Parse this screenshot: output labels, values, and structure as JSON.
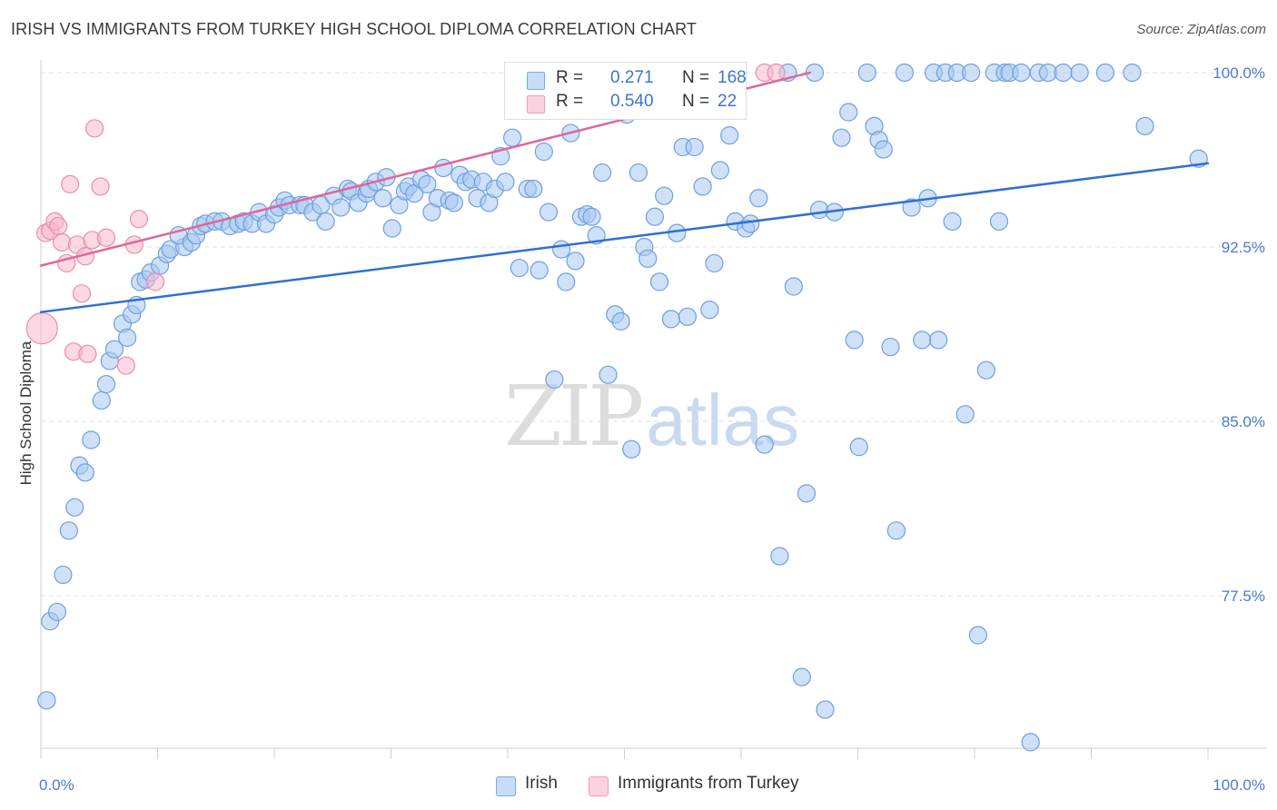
{
  "header": {
    "title": "IRISH VS IMMIGRANTS FROM TURKEY HIGH SCHOOL DIPLOMA CORRELATION CHART",
    "source": "Source: ZipAtlas.com"
  },
  "legend": {
    "series": [
      {
        "r_label": "R =",
        "r_value": "0.271",
        "n_label": "N =",
        "n_value": "168",
        "color": "#a8c8f0"
      },
      {
        "r_label": "R =",
        "r_value": "0.540",
        "n_label": "N =",
        "n_value": "22",
        "color": "#f7b8cc"
      }
    ]
  },
  "watermark": {
    "zip": "ZIP",
    "atlas": "atlas"
  },
  "chart_data": {
    "type": "scatter",
    "title": "IRISH VS IMMIGRANTS FROM TURKEY HIGH SCHOOL DIPLOMA CORRELATION CHART",
    "ylabel": "High School Diploma",
    "xlabel": "",
    "xlim": [
      0,
      100
    ],
    "ylim": [
      71.2,
      100.6
    ],
    "x_tick_labels": [
      "0.0%",
      "100.0%"
    ],
    "y_ticks": [
      77.5,
      85.0,
      92.5,
      100.0
    ],
    "y_tick_labels": [
      "77.5%",
      "85.0%",
      "92.5%",
      "100.0%"
    ],
    "grid": true,
    "legend_position": "bottom",
    "series": [
      {
        "name": "Irish",
        "color": "#a8c8f0",
        "edge_color": "#6f9ee0",
        "trend": {
          "x": [
            0,
            100
          ],
          "y": [
            89.7,
            96.1
          ],
          "color": "#2f6fd2"
        },
        "points": [
          [
            0.5,
            73.0
          ],
          [
            0.8,
            76.4
          ],
          [
            1.4,
            76.8
          ],
          [
            1.9,
            78.4
          ],
          [
            2.4,
            80.3
          ],
          [
            2.9,
            81.3
          ],
          [
            3.3,
            83.1
          ],
          [
            3.8,
            82.8
          ],
          [
            4.3,
            84.2
          ],
          [
            5.2,
            85.9
          ],
          [
            5.6,
            86.6
          ],
          [
            5.9,
            87.6
          ],
          [
            6.3,
            88.1
          ],
          [
            7.0,
            89.2
          ],
          [
            7.4,
            88.6
          ],
          [
            7.8,
            89.6
          ],
          [
            8.2,
            90.0
          ],
          [
            8.5,
            91.0
          ],
          [
            9.0,
            91.1
          ],
          [
            9.4,
            91.4
          ],
          [
            10.2,
            91.7
          ],
          [
            10.8,
            92.2
          ],
          [
            11.1,
            92.4
          ],
          [
            12.3,
            92.5
          ],
          [
            11.8,
            93.0
          ],
          [
            12.9,
            92.7
          ],
          [
            13.3,
            93.0
          ],
          [
            13.7,
            93.4
          ],
          [
            14.1,
            93.5
          ],
          [
            14.9,
            93.6
          ],
          [
            15.5,
            93.6
          ],
          [
            16.2,
            93.4
          ],
          [
            16.9,
            93.5
          ],
          [
            17.4,
            93.6
          ],
          [
            18.1,
            93.5
          ],
          [
            18.7,
            94.0
          ],
          [
            19.3,
            93.5
          ],
          [
            20.0,
            93.9
          ],
          [
            20.4,
            94.2
          ],
          [
            20.9,
            94.5
          ],
          [
            21.3,
            94.3
          ],
          [
            22.2,
            94.3
          ],
          [
            22.6,
            94.3
          ],
          [
            23.3,
            94.0
          ],
          [
            24.0,
            94.3
          ],
          [
            24.4,
            93.6
          ],
          [
            25.1,
            94.7
          ],
          [
            25.7,
            94.2
          ],
          [
            26.3,
            95.0
          ],
          [
            26.6,
            94.9
          ],
          [
            27.2,
            94.4
          ],
          [
            27.9,
            94.8
          ],
          [
            28.1,
            95.0
          ],
          [
            28.7,
            95.3
          ],
          [
            29.3,
            94.6
          ],
          [
            29.6,
            95.5
          ],
          [
            30.1,
            93.3
          ],
          [
            30.7,
            94.3
          ],
          [
            31.2,
            94.9
          ],
          [
            31.5,
            95.1
          ],
          [
            32.0,
            94.8
          ],
          [
            32.6,
            95.4
          ],
          [
            33.1,
            95.2
          ],
          [
            33.5,
            94.0
          ],
          [
            34.0,
            94.6
          ],
          [
            34.5,
            95.9
          ],
          [
            35.0,
            94.5
          ],
          [
            35.4,
            94.4
          ],
          [
            35.9,
            95.6
          ],
          [
            36.4,
            95.3
          ],
          [
            36.9,
            95.4
          ],
          [
            37.4,
            94.6
          ],
          [
            37.9,
            95.3
          ],
          [
            38.4,
            94.4
          ],
          [
            38.9,
            95.0
          ],
          [
            39.4,
            96.4
          ],
          [
            39.8,
            95.3
          ],
          [
            40.4,
            97.2
          ],
          [
            41.0,
            91.6
          ],
          [
            41.7,
            95.0
          ],
          [
            42.2,
            95.0
          ],
          [
            42.7,
            91.5
          ],
          [
            43.1,
            96.6
          ],
          [
            43.5,
            94.0
          ],
          [
            44.0,
            86.8
          ],
          [
            44.6,
            92.4
          ],
          [
            45.0,
            91.0
          ],
          [
            45.4,
            97.4
          ],
          [
            45.8,
            91.9
          ],
          [
            46.3,
            93.8
          ],
          [
            46.8,
            93.9
          ],
          [
            47.2,
            93.8
          ],
          [
            47.6,
            93.0
          ],
          [
            48.1,
            95.7
          ],
          [
            48.6,
            87.0
          ],
          [
            49.2,
            89.6
          ],
          [
            49.7,
            89.3
          ],
          [
            50.2,
            98.2
          ],
          [
            50.6,
            83.8
          ],
          [
            51.2,
            95.7
          ],
          [
            51.7,
            92.5
          ],
          [
            52.0,
            92.0
          ],
          [
            52.6,
            93.8
          ],
          [
            53.0,
            91.0
          ],
          [
            53.4,
            94.7
          ],
          [
            54.0,
            89.4
          ],
          [
            54.5,
            93.1
          ],
          [
            55.0,
            96.8
          ],
          [
            55.4,
            89.5
          ],
          [
            56.0,
            96.8
          ],
          [
            56.3,
            100.0
          ],
          [
            56.7,
            95.1
          ],
          [
            57.3,
            89.8
          ],
          [
            57.7,
            91.8
          ],
          [
            58.2,
            95.8
          ],
          [
            59.0,
            97.3
          ],
          [
            59.5,
            93.6
          ],
          [
            60.4,
            93.3
          ],
          [
            60.8,
            93.5
          ],
          [
            61.5,
            94.6
          ],
          [
            62.0,
            84.0
          ],
          [
            63.3,
            79.2
          ],
          [
            64.0,
            100.0
          ],
          [
            64.5,
            90.8
          ],
          [
            65.2,
            74.0
          ],
          [
            65.6,
            81.9
          ],
          [
            66.3,
            100.0
          ],
          [
            66.7,
            94.1
          ],
          [
            67.2,
            72.6
          ],
          [
            68.0,
            94.0
          ],
          [
            68.6,
            97.2
          ],
          [
            69.2,
            98.3
          ],
          [
            69.7,
            88.5
          ],
          [
            70.1,
            83.9
          ],
          [
            70.8,
            100.0
          ],
          [
            71.4,
            97.7
          ],
          [
            71.8,
            97.1
          ],
          [
            72.2,
            96.7
          ],
          [
            72.8,
            88.2
          ],
          [
            73.3,
            80.3
          ],
          [
            74.0,
            100.0
          ],
          [
            74.6,
            94.2
          ],
          [
            75.5,
            88.5
          ],
          [
            76.0,
            94.6
          ],
          [
            76.5,
            100.0
          ],
          [
            76.9,
            88.5
          ],
          [
            77.5,
            100.0
          ],
          [
            78.1,
            93.6
          ],
          [
            78.5,
            100.0
          ],
          [
            79.2,
            85.3
          ],
          [
            79.7,
            100.0
          ],
          [
            80.3,
            75.8
          ],
          [
            81.0,
            87.2
          ],
          [
            81.7,
            100.0
          ],
          [
            82.1,
            93.6
          ],
          [
            82.6,
            100.0
          ],
          [
            83.0,
            100.0
          ],
          [
            84.0,
            100.0
          ],
          [
            84.8,
            71.2
          ],
          [
            85.5,
            100.0
          ],
          [
            86.3,
            100.0
          ],
          [
            87.6,
            100.0
          ],
          [
            89.0,
            100.0
          ],
          [
            91.2,
            100.0
          ],
          [
            93.5,
            100.0
          ],
          [
            94.6,
            97.7
          ],
          [
            99.2,
            96.3
          ]
        ]
      },
      {
        "name": "Immigrants from Turkey",
        "color": "#f7b8cc",
        "edge_color": "#ea8eab",
        "trend": {
          "x": [
            0,
            65.9
          ],
          "y": [
            91.7,
            100.0
          ],
          "color": "#e0679a"
        },
        "points": [
          [
            0.4,
            93.1
          ],
          [
            0.8,
            93.2
          ],
          [
            1.2,
            93.6
          ],
          [
            1.5,
            93.4
          ],
          [
            1.8,
            92.7
          ],
          [
            2.2,
            91.8
          ],
          [
            2.5,
            95.2
          ],
          [
            2.8,
            88.0
          ],
          [
            3.1,
            92.6
          ],
          [
            3.5,
            90.5
          ],
          [
            3.8,
            92.1
          ],
          [
            4.0,
            87.9
          ],
          [
            4.4,
            92.8
          ],
          [
            4.6,
            97.6
          ],
          [
            5.1,
            95.1
          ],
          [
            5.6,
            92.9
          ],
          [
            7.3,
            87.4
          ],
          [
            8.0,
            92.6
          ],
          [
            8.4,
            93.7
          ],
          [
            9.8,
            91.0
          ],
          [
            62.0,
            100.0
          ],
          [
            63.0,
            100.0
          ]
        ],
        "large_point": {
          "x": 0.1,
          "y": 89.0
        }
      }
    ]
  },
  "bottom_legend": [
    {
      "label": "Irish",
      "color": "#a8c8f0"
    },
    {
      "label": "Immigrants from Turkey",
      "color": "#f7b8cc"
    }
  ]
}
